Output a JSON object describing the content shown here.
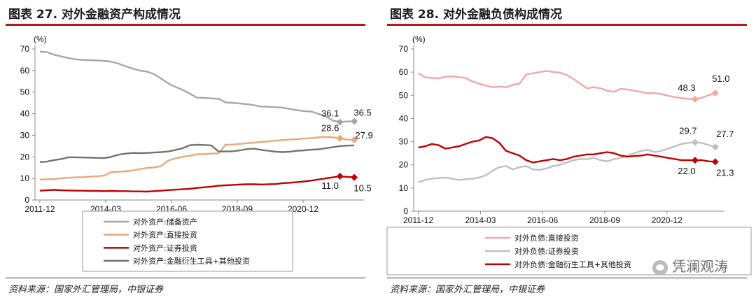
{
  "source_text": "资料来源：国家外汇管理局，中银证券",
  "watermark_text": "凭澜观涛",
  "chart_data": [
    {
      "id": "left",
      "type": "line",
      "title": "图表 27. 对外金融资产构成情况",
      "unit_label": "(%)",
      "ylim": [
        0,
        70
      ],
      "yticks": [
        0,
        10,
        20,
        30,
        40,
        50,
        60,
        70
      ],
      "xlim": [
        2011.75,
        2023.0
      ],
      "xticks": [
        {
          "label": "2011-12",
          "x": 2011.917
        },
        {
          "label": "2014-03",
          "x": 2014.167
        },
        {
          "label": "2016-06",
          "x": 2016.417
        },
        {
          "label": "2018-09",
          "x": 2018.667
        },
        {
          "label": "2020-12",
          "x": 2020.917
        }
      ],
      "grid": false,
      "legend_position": "bottom",
      "series": [
        {
          "name": "对外资产:储备资产",
          "color": "#a6a6a6",
          "values": [
            68.8,
            68.5,
            67.3,
            66.5,
            65.8,
            65.2,
            64.9,
            64.8,
            64.7,
            64.5,
            64.1,
            63.2,
            62.0,
            60.9,
            60.0,
            59.5,
            58.3,
            56.2,
            54.0,
            52.4,
            51.0,
            49.3,
            47.4,
            47.3,
            47.1,
            46.9,
            45.2,
            45.0,
            44.7,
            44.4,
            43.9,
            43.3,
            43.2,
            43.0,
            42.8,
            42.2,
            41.6,
            41.2,
            41.0,
            39.9,
            38.8,
            36.8,
            36.1,
            36.4,
            36.5
          ],
          "end_label": "36.5",
          "marker_label": "36.1",
          "marker_index": 42
        },
        {
          "name": "对外资产:直接投资",
          "color": "#e8a87c",
          "values": [
            9.5,
            9.6,
            9.7,
            10.0,
            10.3,
            10.5,
            10.6,
            10.8,
            11.0,
            11.3,
            12.9,
            13.1,
            13.3,
            13.7,
            14.3,
            14.9,
            15.1,
            15.8,
            18.3,
            19.3,
            20.0,
            20.5,
            21.2,
            21.3,
            21.5,
            21.6,
            25.6,
            25.7,
            26.0,
            26.3,
            26.6,
            26.9,
            27.2,
            27.5,
            27.8,
            28.0,
            28.2,
            28.5,
            28.7,
            29.0,
            29.3,
            29.0,
            28.6,
            28.0,
            27.9
          ],
          "end_label": "27.9",
          "marker_label": "28.6",
          "marker_index": 42
        },
        {
          "name": "对外资产:证券投资",
          "color": "#c00000",
          "values": [
            4.3,
            4.5,
            4.7,
            4.5,
            4.4,
            4.3,
            4.3,
            4.2,
            4.2,
            4.1,
            4.2,
            4.1,
            4.1,
            4.0,
            4.0,
            3.9,
            4.1,
            4.3,
            4.6,
            4.8,
            5.0,
            5.2,
            5.6,
            5.9,
            6.2,
            6.6,
            6.8,
            7.0,
            7.2,
            7.3,
            7.3,
            7.2,
            7.3,
            7.4,
            7.8,
            8.0,
            8.3,
            8.6,
            9.0,
            9.5,
            10.0,
            10.5,
            11.0,
            10.7,
            10.5
          ],
          "end_label": "10.5",
          "marker_label": "11.0",
          "marker_index": 42
        },
        {
          "name": "对外资产:金融衍生工具+其他投资",
          "color": "#737373",
          "values": [
            17.6,
            17.8,
            18.5,
            19.0,
            19.8,
            19.8,
            19.7,
            19.6,
            19.5,
            19.4,
            20.0,
            21.0,
            21.5,
            21.8,
            21.7,
            21.8,
            22.0,
            22.2,
            22.5,
            23.2,
            24.0,
            25.4,
            25.6,
            25.5,
            25.3,
            22.5,
            22.5,
            22.6,
            23.0,
            23.6,
            23.8,
            23.2,
            22.8,
            22.4,
            22.2,
            22.4,
            22.8,
            23.0,
            23.3,
            23.5,
            24.0,
            24.5,
            25.0,
            25.2,
            25.3
          ],
          "end_label": "",
          "marker_label": "",
          "marker_index": -1
        }
      ]
    },
    {
      "id": "right",
      "type": "line",
      "title": "图表 28. 对外金融负债构成情况",
      "unit_label": "(%)",
      "ylim": [
        0,
        70
      ],
      "yticks": [
        0,
        10,
        20,
        30,
        40,
        50,
        60,
        70
      ],
      "xlim": [
        2011.75,
        2023.0
      ],
      "xticks": [
        {
          "label": "2011-12",
          "x": 2011.917
        },
        {
          "label": "2014-03",
          "x": 2014.167
        },
        {
          "label": "2016-06",
          "x": 2016.417
        },
        {
          "label": "2018-09",
          "x": 2018.667
        },
        {
          "label": "2020-12",
          "x": 2020.917
        }
      ],
      "grid": false,
      "legend_position": "bottom",
      "series": [
        {
          "name": "对外负债:直接投资",
          "color": "#f4a6a6",
          "values": [
            59.5,
            57.8,
            57.5,
            57.3,
            58.0,
            58.2,
            57.8,
            57.5,
            56.0,
            55.0,
            54.2,
            53.5,
            53.8,
            53.5,
            54.5,
            55.0,
            59.0,
            59.5,
            60.0,
            60.5,
            60.0,
            59.8,
            58.8,
            57.0,
            55.0,
            53.0,
            53.5,
            53.0,
            52.0,
            51.5,
            52.8,
            52.5,
            52.0,
            51.5,
            50.8,
            51.0,
            50.5,
            49.8,
            49.2,
            48.8,
            48.5,
            48.3,
            49.0,
            50.0,
            51.0
          ],
          "end_label": "51.0",
          "marker_label": "48.3",
          "marker_index": 41
        },
        {
          "name": "对外负债:证券投资",
          "color": "#bfbfbf",
          "values": [
            12.5,
            13.5,
            14.0,
            14.3,
            14.5,
            14.0,
            13.5,
            13.8,
            14.0,
            14.5,
            15.5,
            17.5,
            19.0,
            19.5,
            18.0,
            19.0,
            19.5,
            18.0,
            17.8,
            18.5,
            19.5,
            20.0,
            21.0,
            22.0,
            22.5,
            22.5,
            23.0,
            22.0,
            21.5,
            22.5,
            23.0,
            24.0,
            25.0,
            26.0,
            26.5,
            25.5,
            26.0,
            27.0,
            28.0,
            29.0,
            29.5,
            29.7,
            29.5,
            28.5,
            27.7
          ],
          "end_label": "27.7",
          "marker_label": "29.7",
          "marker_index": 41
        },
        {
          "name": "对外负债:金融衍生工具+其他投资",
          "color": "#c00000",
          "values": [
            27.5,
            28.0,
            29.0,
            28.5,
            27.0,
            27.5,
            28.0,
            29.0,
            30.0,
            30.5,
            32.0,
            31.5,
            29.5,
            26.0,
            25.0,
            24.0,
            22.0,
            21.0,
            21.5,
            22.0,
            22.5,
            22.0,
            22.5,
            23.5,
            24.0,
            24.5,
            24.5,
            25.0,
            25.5,
            25.0,
            24.0,
            23.5,
            23.8,
            24.0,
            24.5,
            24.0,
            23.5,
            23.0,
            22.5,
            22.0,
            22.0,
            22.0,
            22.0,
            21.5,
            21.3
          ],
          "end_label": "21.3",
          "marker_label": "22.0",
          "marker_index": 41
        }
      ]
    }
  ]
}
